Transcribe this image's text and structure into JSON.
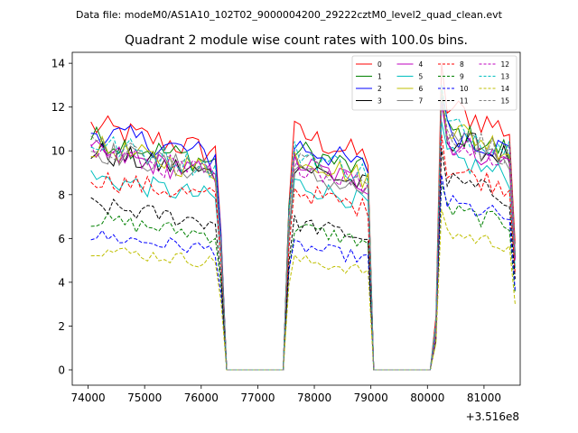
{
  "chart_data": {
    "type": "line",
    "suptitle": "Data file: modeM0/AS1A10_102T02_9000004200_29222cztM0_level2_quad_clean.evt",
    "title": "Quadrant 2 module wise count rates with 100.0s bins.",
    "xlabel": "",
    "ylabel": "",
    "x_offset_label": "+3.516e8",
    "xlim": [
      73720,
      81640
    ],
    "ylim": [
      -0.7,
      14.5
    ],
    "xticks": [
      74000,
      75000,
      76000,
      77000,
      78000,
      79000,
      80000,
      81000
    ],
    "xtick_labels": [
      "74000",
      "75000",
      "76000",
      "77000",
      "78000",
      "79000",
      "80000",
      "81000"
    ],
    "yticks": [
      0,
      2,
      4,
      6,
      8,
      10,
      12,
      14
    ],
    "ytick_labels": [
      "0",
      "2",
      "4",
      "6",
      "8",
      "10",
      "12",
      "14"
    ],
    "x_start": 74050,
    "x_step": 100,
    "n_points": 76,
    "segments": [
      {
        "from": 0,
        "to": 23,
        "ramp_end": 0.6
      },
      {
        "from": 35,
        "to": 49,
        "ramp_start": 0.7
      },
      {
        "from": 61,
        "to": 75,
        "ramp_start": 0.15,
        "ramp_end": 0.5
      }
    ],
    "gaps": [
      [
        24,
        34
      ],
      [
        50,
        60
      ]
    ],
    "gap_value": 0.0,
    "legend": {
      "placement": "upper-right",
      "columns": 4
    },
    "series": [
      {
        "name": "0",
        "color": "#ff0000",
        "dash": "solid",
        "levels": [
          10.5,
          10.3,
          11.5
        ]
      },
      {
        "name": "1",
        "color": "#008000",
        "dash": "solid",
        "levels": [
          10.0,
          9.6,
          10.5
        ]
      },
      {
        "name": "2",
        "color": "#0000ff",
        "dash": "solid",
        "levels": [
          10.3,
          9.8,
          10.5
        ]
      },
      {
        "name": "3",
        "color": "#000000",
        "dash": "solid",
        "levels": [
          9.4,
          8.9,
          10.2
        ]
      },
      {
        "name": "4",
        "color": "#bf00bf",
        "dash": "solid",
        "levels": [
          9.4,
          9.0,
          10.0
        ]
      },
      {
        "name": "5",
        "color": "#00bfbf",
        "dash": "solid",
        "levels": [
          8.3,
          8.1,
          9.3
        ]
      },
      {
        "name": "6",
        "color": "#bfbf00",
        "dash": "solid",
        "levels": [
          9.6,
          9.3,
          10.6
        ]
      },
      {
        "name": "7",
        "color": "#808080",
        "dash": "solid",
        "levels": [
          9.5,
          8.6,
          10.1
        ]
      },
      {
        "name": "8",
        "color": "#ff0000",
        "dash": "dashed",
        "levels": [
          8.3,
          7.8,
          8.8
        ]
      },
      {
        "name": "9",
        "color": "#008000",
        "dash": "dashed",
        "levels": [
          6.5,
          6.2,
          7.0
        ]
      },
      {
        "name": "10",
        "color": "#0000ff",
        "dash": "dashed",
        "levels": [
          5.8,
          5.4,
          7.3
        ]
      },
      {
        "name": "11",
        "color": "#000000",
        "dash": "dashed",
        "levels": [
          7.1,
          6.4,
          8.3
        ]
      },
      {
        "name": "12",
        "color": "#bf00bf",
        "dash": "dashed",
        "levels": [
          9.4,
          9.0,
          10.0
        ]
      },
      {
        "name": "13",
        "color": "#00bfbf",
        "dash": "dashed",
        "levels": [
          9.8,
          9.5,
          10.7
        ]
      },
      {
        "name": "14",
        "color": "#bfbf00",
        "dash": "dashed",
        "levels": [
          5.2,
          4.8,
          6.0
        ]
      },
      {
        "name": "15",
        "color": "#808080",
        "dash": "dashed",
        "levels": [
          9.6,
          9.2,
          10.4
        ]
      }
    ]
  }
}
